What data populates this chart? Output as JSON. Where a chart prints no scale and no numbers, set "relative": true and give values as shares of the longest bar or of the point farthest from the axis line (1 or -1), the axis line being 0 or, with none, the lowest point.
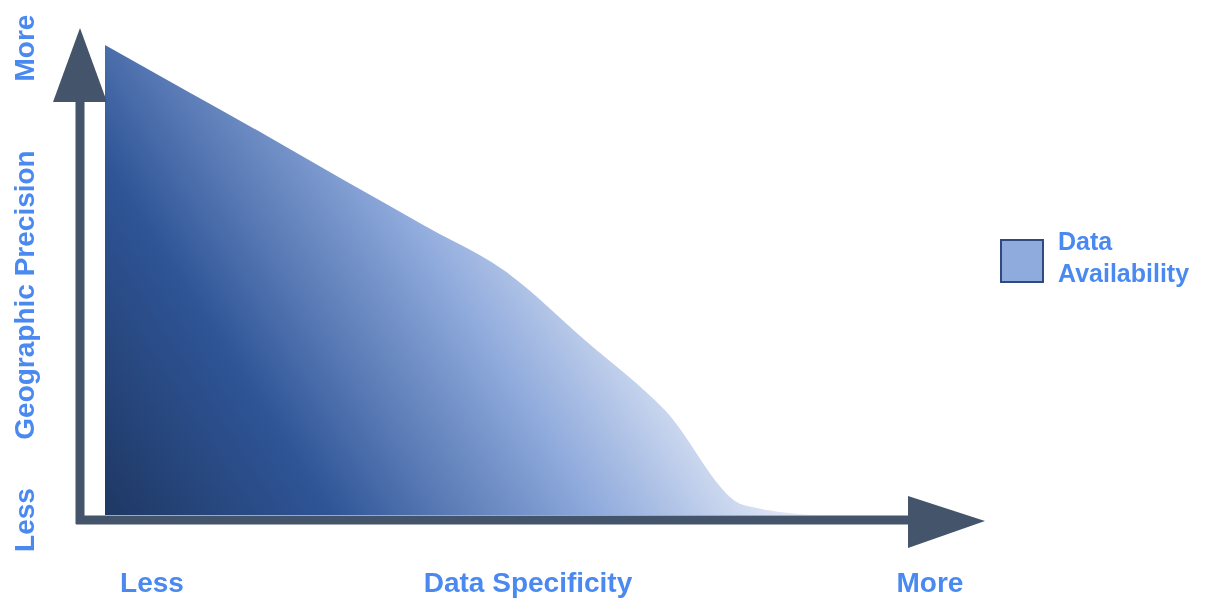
{
  "chart_data": {
    "type": "area",
    "relative": true,
    "xlabel": "Data Specificity",
    "ylabel": "Geographic Precision",
    "annotations": [
      "Less",
      "More",
      "Less",
      "More"
    ],
    "categories": [
      null,
      null,
      null,
      null,
      null,
      null,
      null,
      null,
      null,
      null,
      null,
      null
    ],
    "series": [
      {
        "name": "Data Availability",
        "color": "#8faadc",
        "values": [
          1,
          0.904,
          0.809,
          0.711,
          0.615,
          0.519,
          0.372,
          0.223,
          0.02,
          0,
          0,
          0
        ]
      }
    ],
    "legend": "right"
  }
}
